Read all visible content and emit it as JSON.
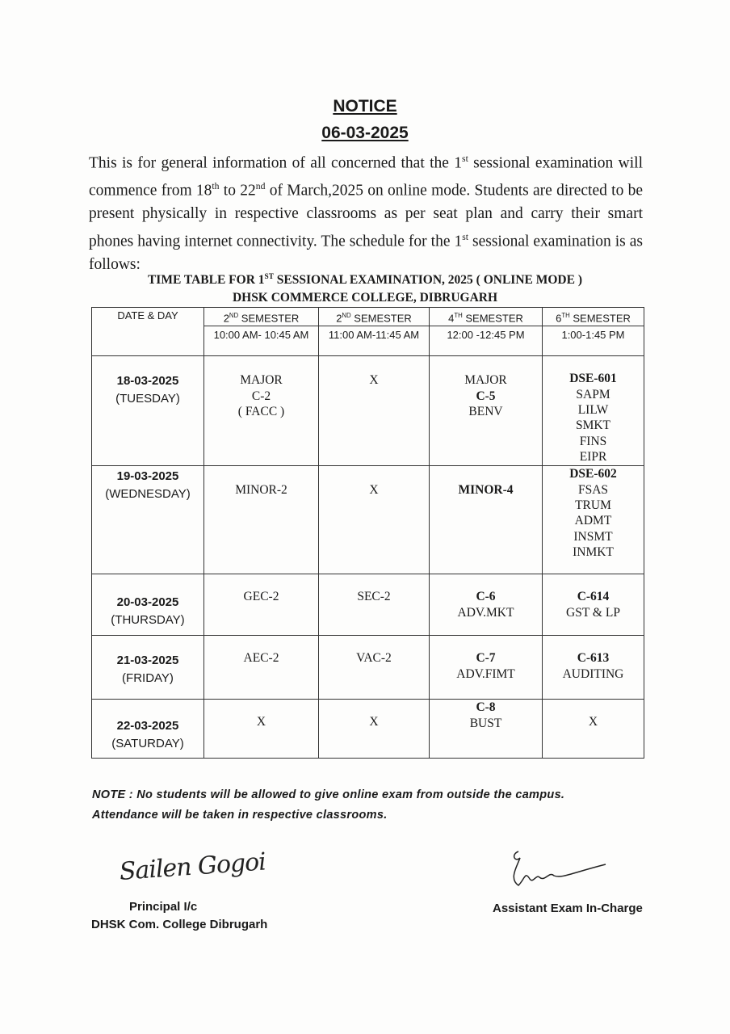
{
  "notice": {
    "title": "NOTICE",
    "date": "06-03-2025",
    "paragraph": {
      "p1": "This is for general information of all concerned that the 1",
      "s1": "st",
      "p2": " sessional examination will commence from 18",
      "s2": "th",
      "p3": " to 22",
      "s3": "nd",
      "p4": " of March,2025 on online mode. Students are directed to be present physically in respective classrooms as per seat plan and carry their smart phones having internet connectivity. The schedule for the 1",
      "s4": "st",
      "p5": " sessional examination is as follows:"
    }
  },
  "timetable": {
    "title_a": "TIME TABLE FOR 1",
    "title_sup": "ST",
    "title_b": " SESSIONAL EXAMINATION, 2025 ( ONLINE MODE )",
    "college": "DHSK COMMERCE COLLEGE, DIBRUGARH",
    "headers": [
      {
        "label": "DATE & DAY"
      },
      {
        "pre": "2",
        "sup": "ND",
        "post": " SEMESTER",
        "time": "10:00 AM- 10:45 AM"
      },
      {
        "pre": "2",
        "sup": "ND",
        "post": " SEMESTER",
        "time": "11:00 AM-11:45 AM"
      },
      {
        "pre": "4",
        "sup": "TH",
        "post": " SEMESTER",
        "time": "12:00 -12:45 PM"
      },
      {
        "pre": "6",
        "sup": "TH",
        "post": " SEMESTER",
        "time": "1:00-1:45 PM"
      }
    ],
    "rows": [
      {
        "date": "18-03-2025",
        "day": "(TUESDAY)",
        "cells": [
          [
            {
              "t": "MAJOR",
              "b": false
            },
            {
              "t": "C-2",
              "b": false
            },
            {
              "t": "( FACC )",
              "b": false
            }
          ],
          [
            {
              "t": "X",
              "b": false
            }
          ],
          [
            {
              "t": "MAJOR",
              "b": false
            },
            {
              "t": "C-5",
              "b": true
            },
            {
              "t": "BENV",
              "b": false
            }
          ],
          [
            {
              "t": "DSE-601",
              "b": true
            },
            {
              "t": "SAPM",
              "b": false
            },
            {
              "t": "LILW",
              "b": false
            },
            {
              "t": "SMKT",
              "b": false
            },
            {
              "t": "FINS",
              "b": false
            },
            {
              "t": "EIPR",
              "b": false
            }
          ]
        ]
      },
      {
        "date": "19-03-2025",
        "day": "(WEDNESDAY)",
        "cells": [
          [
            {
              "t": "MINOR-2",
              "b": false
            }
          ],
          [
            {
              "t": "X",
              "b": false
            }
          ],
          [
            {
              "t": "MINOR-4",
              "b": true
            }
          ],
          [
            {
              "t": "DSE-602",
              "b": true
            },
            {
              "t": "FSAS",
              "b": false
            },
            {
              "t": "TRUM",
              "b": false
            },
            {
              "t": "ADMT",
              "b": false
            },
            {
              "t": "INSMT",
              "b": false
            },
            {
              "t": "INMKT",
              "b": false
            }
          ]
        ]
      },
      {
        "date": "20-03-2025",
        "day": "(THURSDAY)",
        "cells": [
          [
            {
              "t": "GEC-2",
              "b": false
            }
          ],
          [
            {
              "t": "SEC-2",
              "b": false
            }
          ],
          [
            {
              "t": "C-6",
              "b": true
            },
            {
              "t": "ADV.MKT",
              "b": false
            }
          ],
          [
            {
              "t": "C-614",
              "b": true
            },
            {
              "t": "GST & LP",
              "b": false
            }
          ]
        ]
      },
      {
        "date": "21-03-2025",
        "day": "(FRIDAY)",
        "cells": [
          [
            {
              "t": "AEC-2",
              "b": false
            }
          ],
          [
            {
              "t": "VAC-2",
              "b": false
            }
          ],
          [
            {
              "t": "C-7",
              "b": true
            },
            {
              "t": "ADV.FIMT",
              "b": false
            }
          ],
          [
            {
              "t": "C-613",
              "b": true
            },
            {
              "t": "AUDITING",
              "b": false
            }
          ]
        ]
      },
      {
        "date": "22-03-2025",
        "day": "(SATURDAY)",
        "cells": [
          [
            {
              "t": "X",
              "b": false
            }
          ],
          [
            {
              "t": "X",
              "b": false
            }
          ],
          [
            {
              "t": "C-8",
              "b": true
            },
            {
              "t": "BUST",
              "b": false
            }
          ],
          [
            {
              "t": "X",
              "b": false
            }
          ]
        ]
      }
    ]
  },
  "note": {
    "line1": "NOTE : No students will be allowed to give online exam from outside the campus.",
    "line2": "Attendance will be taken in respective classrooms."
  },
  "signatures": {
    "left_title": "Principal I/c",
    "left_org": "DHSK Com. College Dibrugarh",
    "left_signature_text": "Sailen Gogoi",
    "right_title": "Assistant Exam In-Charge"
  }
}
